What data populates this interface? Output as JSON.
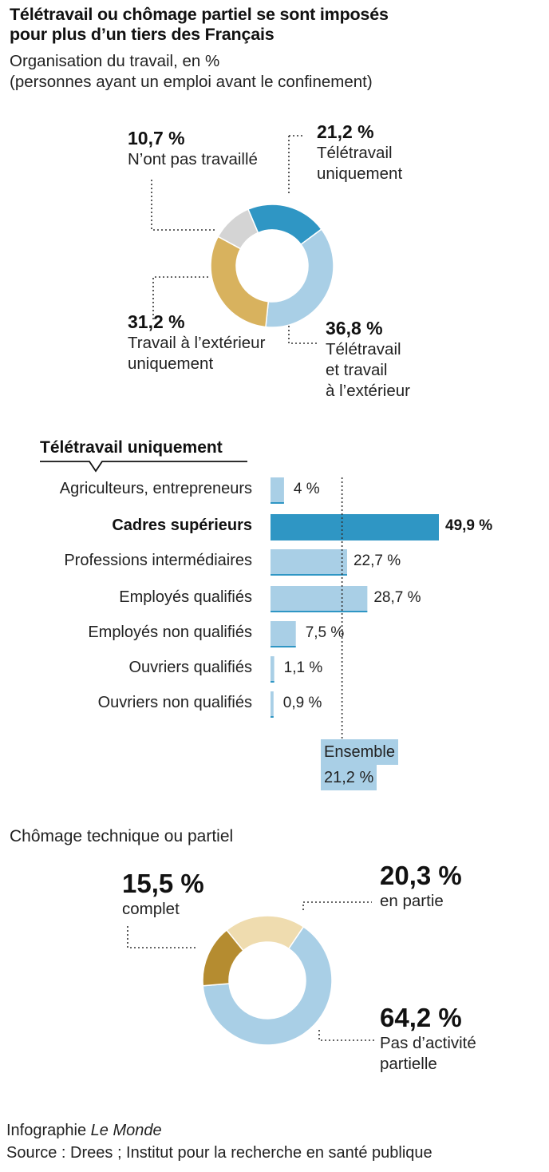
{
  "header": {
    "title_line1": "Télétravail ou chômage partiel se sont imposés",
    "title_line2": "pour plus d’un tiers des Français",
    "subtitle_line1": "Organisation du travail, en %",
    "subtitle_line2": "(personnes ayant un emploi avant le confinement)"
  },
  "chart_data": [
    {
      "type": "pie",
      "subtype": "donut",
      "categories": [
        "Télétravail uniquement",
        "Télétravail et travail à l’extérieur",
        "Travail à l’extérieur uniquement",
        "N’ont pas travaillé"
      ],
      "values": [
        21.2,
        36.8,
        31.2,
        10.7
      ],
      "colors": [
        "#2f96c4",
        "#a9cfe6",
        "#d8b25e",
        "#d4d4d4"
      ],
      "labels": {
        "pct": [
          "21,2 %",
          "36,8 %",
          "31,2 %",
          "10,7 %"
        ],
        "line1": [
          "Télétravail",
          "Télétravail",
          "Travail à l’extérieur",
          "N’ont pas travaillé"
        ],
        "line2": [
          "uniquement",
          "et travail",
          "uniquement",
          ""
        ],
        "line3": [
          "",
          "à l’extérieur",
          "",
          ""
        ]
      }
    },
    {
      "type": "bar",
      "orientation": "horizontal",
      "title": "Télétravail uniquement",
      "categories": [
        "Agriculteurs, entrepreneurs",
        "Cadres supérieurs",
        "Professions intermédiaires",
        "Employés qualifiés",
        "Employés non qualifiés",
        "Ouvriers qualifiés",
        "Ouvriers non qualifiés"
      ],
      "values": [
        4,
        49.9,
        22.7,
        28.7,
        7.5,
        1.1,
        0.9
      ],
      "value_labels": [
        "4 %",
        "49,9 %",
        "22,7 %",
        "28,7 %",
        "7,5 %",
        "1,1 %",
        "0,9 %"
      ],
      "highlight": "Cadres supérieurs",
      "colors": {
        "default": "#a9cfe6",
        "highlight": "#2f96c4",
        "baseline": "#2f96c4"
      },
      "reference": {
        "label": "Ensemble",
        "value": 21.2,
        "value_label": "21,2 %"
      }
    },
    {
      "type": "pie",
      "subtype": "donut",
      "title": "Chômage technique ou partiel",
      "categories": [
        "en partie",
        "Pas d’activité partielle",
        "complet"
      ],
      "values": [
        20.3,
        64.2,
        15.5
      ],
      "colors": [
        "#efdcaf",
        "#a9cfe6",
        "#b58c30"
      ],
      "labels": {
        "pct": [
          "20,3 %",
          "64,2 %",
          "15,5 %"
        ],
        "line1": [
          "en partie",
          "Pas d’activité",
          "complet"
        ],
        "line2": [
          "",
          "partielle",
          ""
        ]
      }
    }
  ],
  "footer": {
    "credit_prefix": "Infographie ",
    "credit_brand": "Le Monde",
    "source": "Source : Drees ; Institut pour la recherche en santé publique"
  }
}
